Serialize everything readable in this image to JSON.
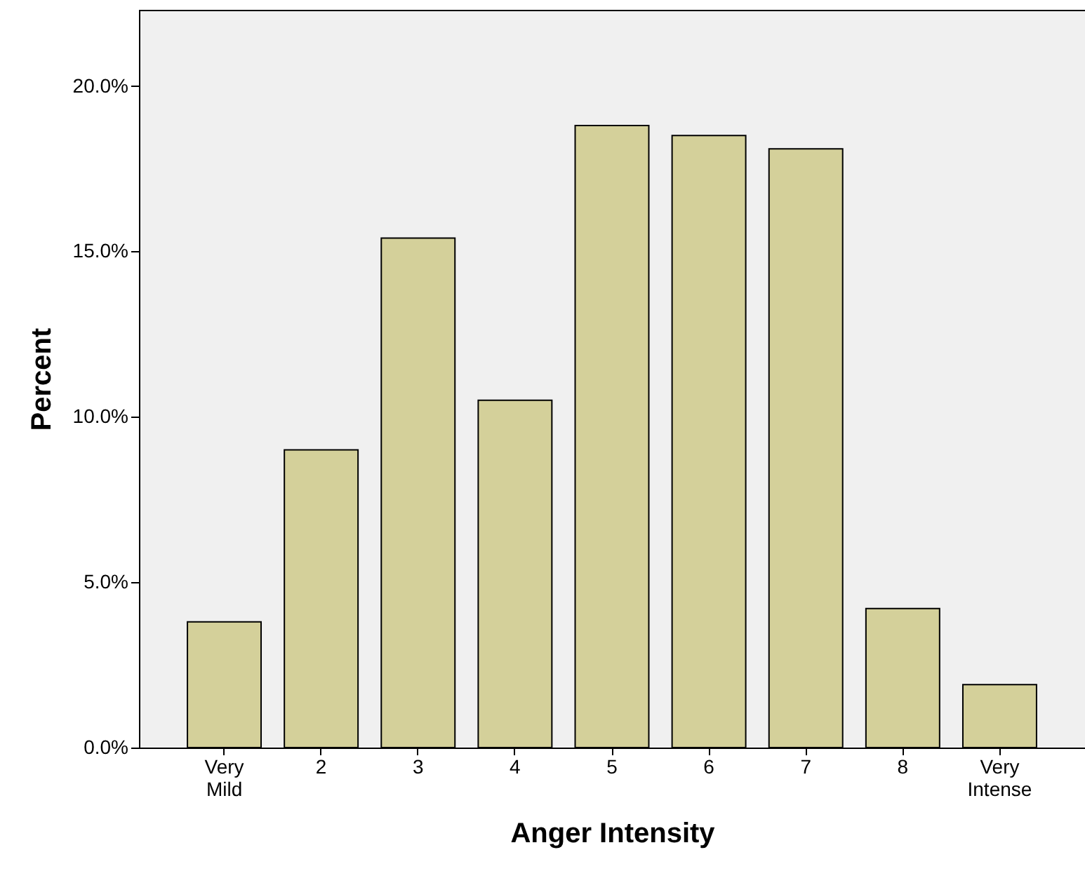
{
  "chart_data": {
    "type": "bar",
    "xlabel": "Anger Intensity",
    "ylabel": "Percent",
    "categories": [
      "Very Mild",
      "2",
      "3",
      "4",
      "5",
      "6",
      "7",
      "8",
      "Very Intense"
    ],
    "values": [
      3.8,
      9.0,
      15.4,
      10.5,
      18.8,
      18.5,
      18.1,
      4.2,
      1.9
    ],
    "color": "#d4d09a",
    "ylim": [
      0,
      22.3
    ],
    "yticks": [
      {
        "value": 0,
        "label": "0.0%"
      },
      {
        "value": 5,
        "label": "5.0%"
      },
      {
        "value": 10,
        "label": "10.0%"
      },
      {
        "value": 15,
        "label": "15.0%"
      },
      {
        "value": 20,
        "label": "20.0%"
      }
    ],
    "grid": false
  }
}
